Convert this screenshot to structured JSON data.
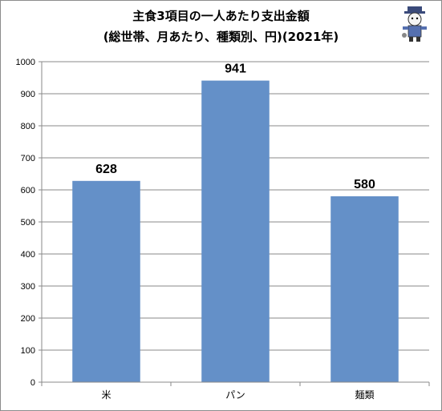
{
  "chart_data": {
    "type": "bar",
    "title_line1": "主食3項目の一人あたり支出金額",
    "title_line2": "(総世帯、月あたり、種類別、円)(2021年)",
    "categories": [
      "米",
      "パン",
      "麺類"
    ],
    "values": [
      628,
      941,
      580
    ],
    "ylim": [
      0,
      1000
    ],
    "yticks": [
      0,
      100,
      200,
      300,
      400,
      500,
      600,
      700,
      800,
      900,
      1000
    ],
    "grid": true,
    "bar_color": "#6490c8",
    "xlabel": "",
    "ylabel": ""
  },
  "mascot_icon": "mascot-character-icon"
}
